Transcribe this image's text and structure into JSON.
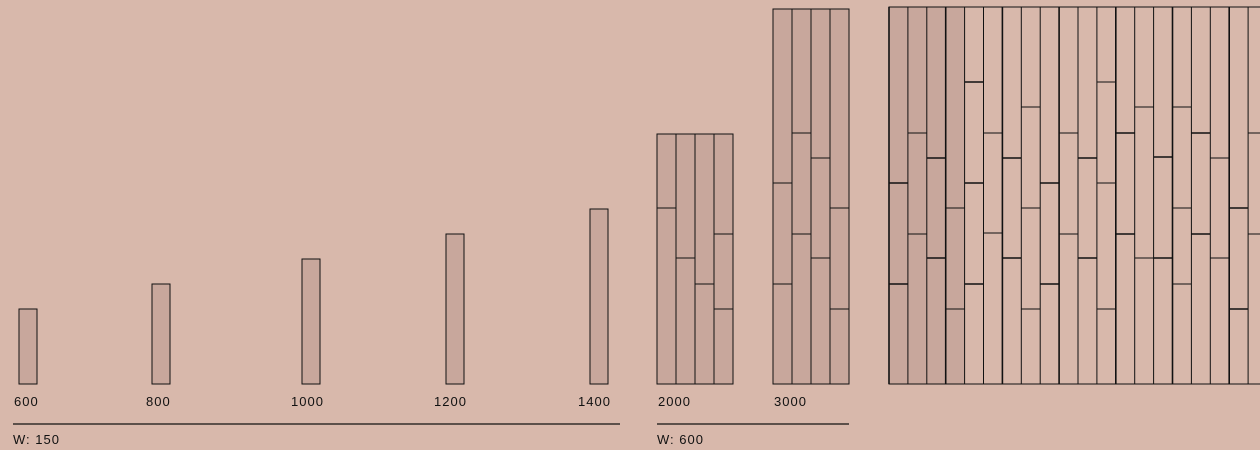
{
  "colors": {
    "background": "#d8b8ab",
    "plank_fill": "#c8a79c",
    "plank_fill_light": "#d8b8ab",
    "stroke": "#111111"
  },
  "groups": [
    {
      "width_label": "W: 150",
      "single_planks": [
        {
          "length_label": "600",
          "length": 600
        },
        {
          "length_label": "800",
          "length": 800
        },
        {
          "length_label": "1000",
          "length": 1000
        },
        {
          "length_label": "1200",
          "length": 1200
        },
        {
          "length_label": "1400",
          "length": 1400
        }
      ]
    },
    {
      "width_label": "W: 600",
      "panels": [
        {
          "length_label": "2000",
          "length": 2000
        },
        {
          "length_label": "3000",
          "length": 3000
        }
      ]
    }
  ]
}
